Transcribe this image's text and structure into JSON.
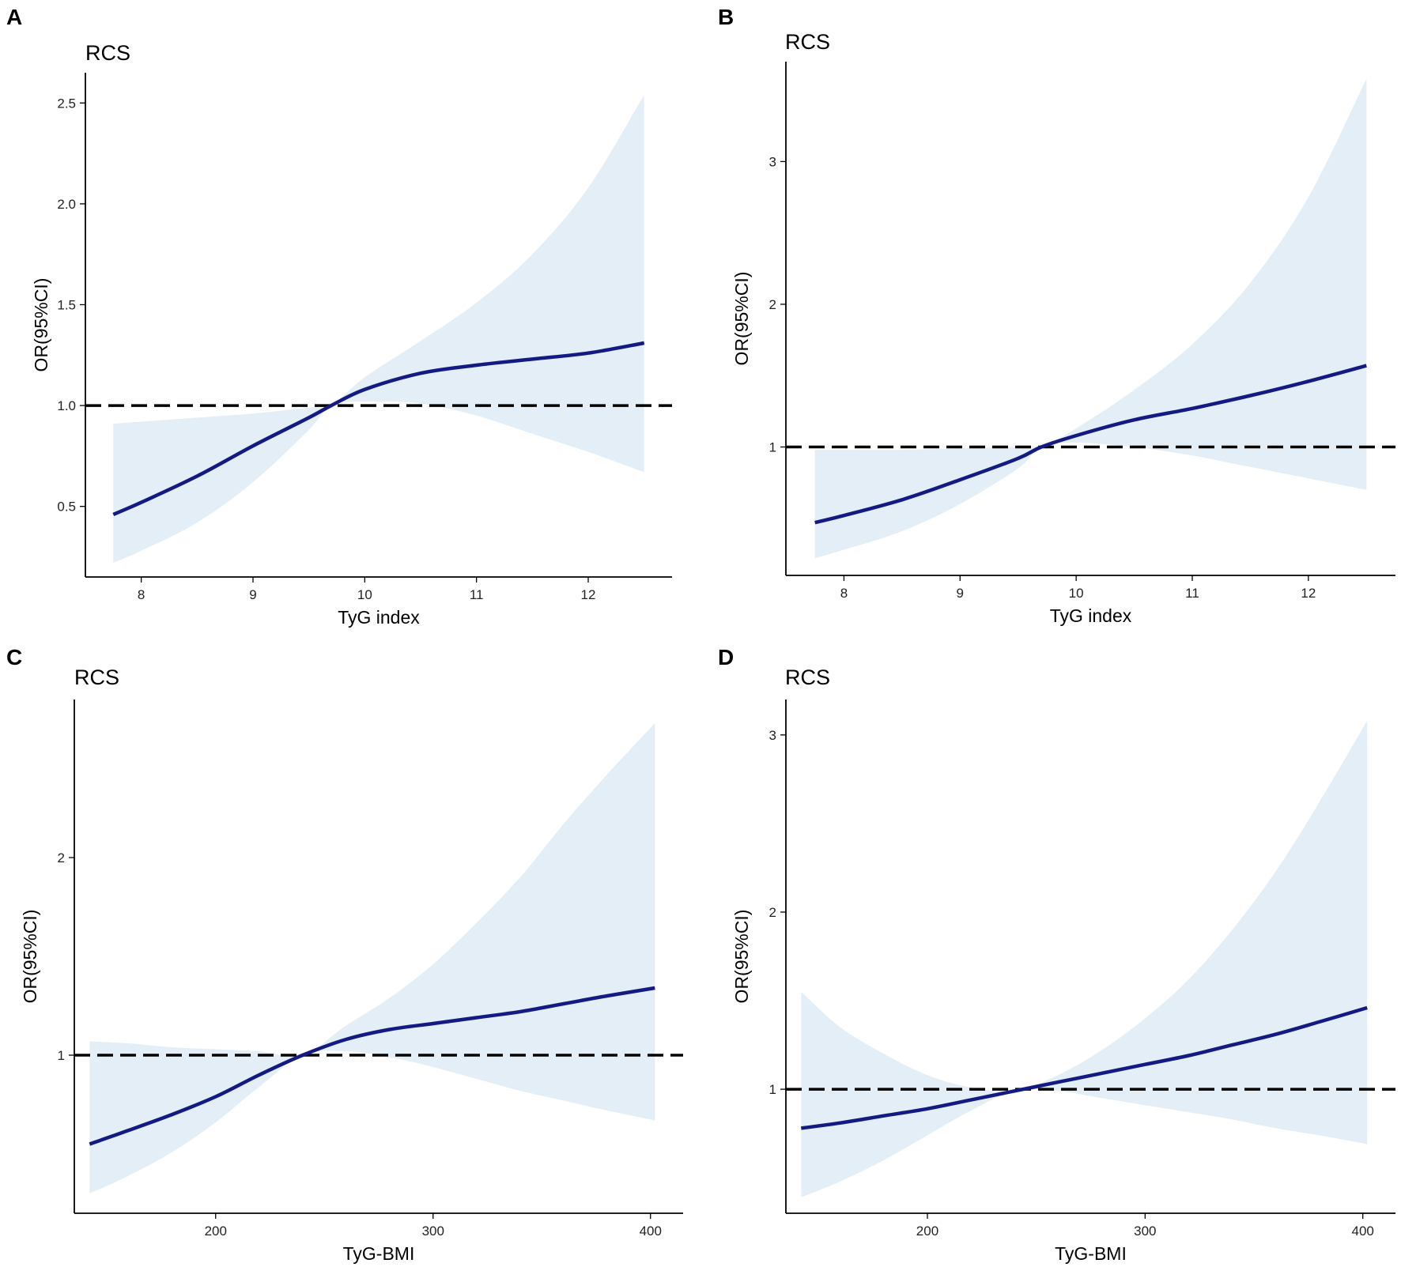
{
  "chart_data": [
    {
      "type": "line",
      "panel": "A",
      "title": "RCS",
      "xlabel": "TyG index",
      "ylabel": "OR(95%CI)",
      "xlim": [
        7.5,
        12.75
      ],
      "ylim": [
        0.15,
        2.65
      ],
      "xticks": [
        8,
        9,
        10,
        11,
        12
      ],
      "yticks": [
        0.5,
        1.0,
        1.5,
        2.0,
        2.5
      ],
      "ytick_labels": [
        "0.5",
        "1.0",
        "1.5",
        "2.0",
        "2.5"
      ],
      "reference_line": 1.0,
      "x": [
        7.75,
        8.0,
        8.5,
        9.0,
        9.5,
        9.7,
        10.0,
        10.5,
        11.0,
        11.5,
        12.0,
        12.5
      ],
      "series": [
        {
          "name": "OR",
          "values": [
            0.46,
            0.52,
            0.65,
            0.8,
            0.94,
            1.0,
            1.08,
            1.16,
            1.2,
            1.23,
            1.26,
            1.31
          ]
        },
        {
          "name": "CI lower",
          "values": [
            0.22,
            0.28,
            0.42,
            0.62,
            0.88,
            1.0,
            1.02,
            1.01,
            0.95,
            0.86,
            0.77,
            0.67
          ]
        },
        {
          "name": "CI upper",
          "values": [
            0.91,
            0.92,
            0.94,
            0.96,
            0.99,
            1.0,
            1.14,
            1.32,
            1.51,
            1.75,
            2.08,
            2.54
          ]
        }
      ]
    },
    {
      "type": "line",
      "panel": "B",
      "title": "RCS",
      "xlabel": "TyG index",
      "ylabel": "OR(95%CI)",
      "xlim": [
        7.5,
        12.75
      ],
      "ylim": [
        0.1,
        3.7
      ],
      "xticks": [
        8,
        9,
        10,
        11,
        12
      ],
      "yticks": [
        1,
        2,
        3
      ],
      "ytick_labels": [
        "1",
        "2",
        "3"
      ],
      "reference_line": 1.0,
      "x": [
        7.75,
        8.0,
        8.5,
        9.0,
        9.5,
        9.7,
        10.0,
        10.5,
        11.0,
        11.5,
        12.0,
        12.5
      ],
      "series": [
        {
          "name": "OR",
          "values": [
            0.47,
            0.52,
            0.63,
            0.77,
            0.92,
            1.0,
            1.08,
            1.19,
            1.27,
            1.36,
            1.46,
            1.57
          ]
        },
        {
          "name": "CI lower",
          "values": [
            0.22,
            0.28,
            0.41,
            0.6,
            0.85,
            1.0,
            1.03,
            1.0,
            0.94,
            0.86,
            0.78,
            0.7
          ]
        },
        {
          "name": "CI upper",
          "values": [
            0.98,
            0.98,
            0.98,
            0.99,
            1.0,
            1.0,
            1.13,
            1.4,
            1.72,
            2.15,
            2.75,
            3.58
          ]
        }
      ]
    },
    {
      "type": "line",
      "panel": "C",
      "title": "RCS",
      "xlabel": "TyG-BMI",
      "ylabel": "OR(95%CI)",
      "xlim": [
        135,
        415
      ],
      "ylim": [
        0.2,
        2.8
      ],
      "xticks": [
        200,
        300,
        400
      ],
      "yticks": [
        1,
        2
      ],
      "ytick_labels": [
        "1",
        "2"
      ],
      "reference_line": 1.0,
      "x": [
        142,
        160,
        180,
        200,
        220,
        240,
        260,
        280,
        300,
        320,
        340,
        360,
        380,
        402
      ],
      "series": [
        {
          "name": "OR",
          "values": [
            0.55,
            0.62,
            0.7,
            0.79,
            0.9,
            1.0,
            1.08,
            1.13,
            1.16,
            1.19,
            1.22,
            1.26,
            1.3,
            1.34
          ]
        },
        {
          "name": "CI lower",
          "values": [
            0.3,
            0.39,
            0.51,
            0.66,
            0.84,
            1.0,
            1.02,
            0.99,
            0.94,
            0.88,
            0.82,
            0.77,
            0.72,
            0.67
          ]
        },
        {
          "name": "CI upper",
          "values": [
            1.07,
            1.06,
            1.04,
            1.03,
            1.02,
            1.0,
            1.15,
            1.29,
            1.46,
            1.67,
            1.9,
            2.17,
            2.42,
            2.68
          ]
        }
      ]
    },
    {
      "type": "line",
      "panel": "D",
      "title": "RCS",
      "xlabel": "TyG-BMI",
      "ylabel": "OR(95%CI)",
      "xlim": [
        135,
        415
      ],
      "ylim": [
        0.3,
        3.2
      ],
      "xticks": [
        200,
        300,
        400
      ],
      "yticks": [
        1,
        2,
        3
      ],
      "ytick_labels": [
        "1",
        "2",
        "3"
      ],
      "reference_line": 1.0,
      "x": [
        142,
        160,
        180,
        200,
        220,
        240,
        260,
        280,
        300,
        320,
        340,
        360,
        380,
        402
      ],
      "series": [
        {
          "name": "OR",
          "values": [
            0.78,
            0.81,
            0.85,
            0.89,
            0.94,
            0.99,
            1.04,
            1.09,
            1.14,
            1.19,
            1.25,
            1.31,
            1.38,
            1.46
          ]
        },
        {
          "name": "CI lower",
          "values": [
            0.39,
            0.48,
            0.6,
            0.74,
            0.88,
            0.99,
            0.99,
            0.95,
            0.91,
            0.87,
            0.83,
            0.78,
            0.74,
            0.69
          ]
        },
        {
          "name": "CI upper",
          "values": [
            1.55,
            1.35,
            1.2,
            1.08,
            1.01,
            0.99,
            1.08,
            1.22,
            1.4,
            1.62,
            1.9,
            2.23,
            2.62,
            3.08
          ]
        }
      ]
    }
  ]
}
